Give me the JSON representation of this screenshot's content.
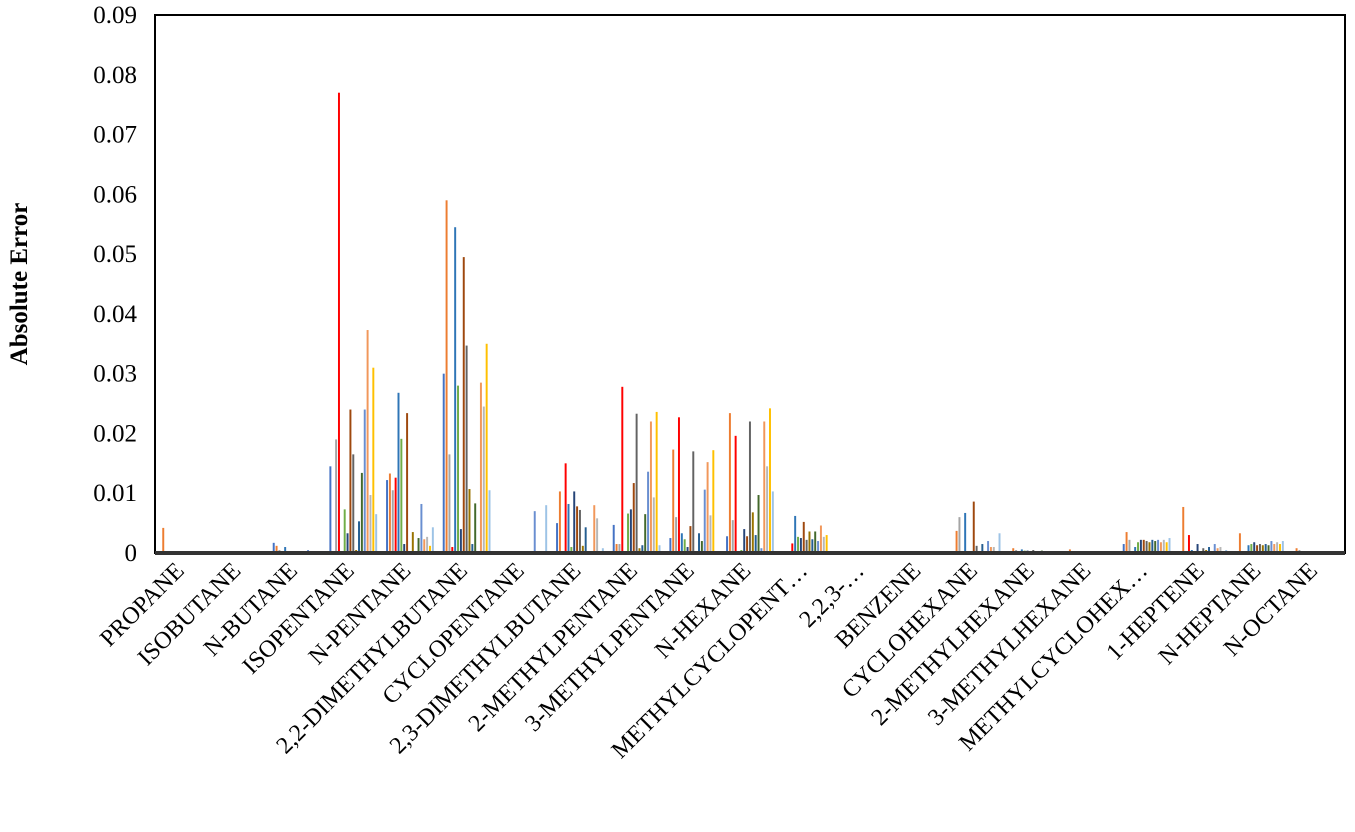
{
  "chart_data": {
    "type": "bar",
    "title": "",
    "xlabel": "",
    "ylabel": "Absolute Error",
    "ylim": [
      0,
      0.09
    ],
    "yticks": [
      "0",
      "0.01",
      "0.02",
      "0.03",
      "0.04",
      "0.05",
      "0.06",
      "0.07",
      "0.08",
      "0.09"
    ],
    "ytick_values": [
      0,
      0.01,
      0.02,
      0.03,
      0.04,
      0.05,
      0.06,
      0.07,
      0.08,
      0.09
    ],
    "grid": false,
    "legend": "none",
    "categories": [
      "PROPANE",
      "ISOBUTANE",
      "N-BUTANE",
      "ISOPENTANE",
      "N-PENTANE",
      "2,2-DIMETHYLBUTANE",
      "CYCLOPENTANE",
      "2,3-DIMETHYLBUTANE",
      "2-METHYLPENTANE",
      "3-METHYLPENTANE",
      "N-HEXANE",
      "METHYLCYCLOPENT…",
      "2,2,3-…",
      "BENZENE",
      "CYCLOHEXANE",
      "2-METHYLHEXANE",
      "3-METHYLHEXANE",
      "METHYLCYCLOHEX…",
      "1-HEPTENE",
      "N-HEPTANE",
      "N-OCTANE"
    ],
    "series_colors": [
      "#4472C4",
      "#ED7D31",
      "#A5A5A5",
      "#FF0000",
      "#2E75B6",
      "#70AD47",
      "#264478",
      "#9E480E",
      "#636363",
      "#997300",
      "#255E91",
      "#43682B",
      "#698ED0",
      "#F1975A",
      "#B7B7B7",
      "#FFC000",
      "#9DC3E6"
    ],
    "values_by_category": [
      [
        0.0003,
        0.0042,
        0,
        0,
        0.0003,
        0,
        0,
        0,
        0,
        0,
        0.0002,
        0,
        0.0002,
        0,
        0,
        0.0002,
        0.0003
      ],
      [
        0,
        0,
        0,
        0,
        0,
        0,
        0,
        0,
        0,
        0,
        0,
        0,
        0,
        0,
        0,
        0,
        0
      ],
      [
        0.0017,
        0.0012,
        0.0005,
        0,
        0.001,
        0.0003,
        0.0003,
        0.0002,
        0.0003,
        0.0003,
        0.0002,
        0.0003,
        0.0005,
        0.0003,
        0.0003,
        0.0002,
        0.0003
      ],
      [
        0.0145,
        0.0003,
        0.019,
        0.077,
        0,
        0.0073,
        0.0033,
        0.024,
        0.0165,
        0.0005,
        0.0053,
        0.0134,
        0.024,
        0.0373,
        0.0097,
        0.031,
        0.0065
      ],
      [
        0.0122,
        0.0133,
        0.0105,
        0.0126,
        0.0268,
        0.0191,
        0.0015,
        0.0234,
        0.0003,
        0.0035,
        0.0003,
        0.0025,
        0.0082,
        0.0023,
        0.0027,
        0.0012,
        0.0043
      ],
      [
        0.03,
        0.059,
        0.0165,
        0.001,
        0.0545,
        0.028,
        0.004,
        0.0495,
        0.0347,
        0.0107,
        0.0015,
        0.0083,
        0.0003,
        0.0285,
        0.0245,
        0.035,
        0.0105
      ],
      [
        0,
        0,
        0,
        0,
        0,
        0,
        0,
        0,
        0,
        0,
        0,
        0,
        0.007,
        0,
        0,
        0,
        0.008
      ],
      [
        0.005,
        0.0103,
        0.0003,
        0.015,
        0.0082,
        0.001,
        0.0103,
        0.0078,
        0.0072,
        0.0012,
        0.0043,
        0.0003,
        0.0003,
        0.008,
        0.0058,
        0.0003,
        0.0008
      ],
      [
        0.0047,
        0.0015,
        0.0015,
        0.0278,
        0.0003,
        0.0066,
        0.0073,
        0.0117,
        0.0233,
        0.0008,
        0.0013,
        0.0065,
        0.0136,
        0.022,
        0.0093,
        0.0236,
        0.0013
      ],
      [
        0.0025,
        0.0173,
        0.006,
        0.0227,
        0.0033,
        0.0023,
        0.001,
        0.0045,
        0.017,
        0,
        0.0033,
        0.002,
        0.0106,
        0.0152,
        0.0063,
        0.0172,
        0
      ],
      [
        0.0028,
        0.0234,
        0.0055,
        0.0196,
        0,
        0.0005,
        0.004,
        0.0028,
        0.022,
        0.0068,
        0.003,
        0.0097,
        0.0008,
        0.022,
        0.0145,
        0.0242,
        0.0103
      ],
      [
        0.0003,
        0.0003,
        0.0003,
        0.0016,
        0.0062,
        0.0027,
        0.0025,
        0.0052,
        0.0022,
        0.0036,
        0.0023,
        0.0036,
        0.002,
        0.0046,
        0.0027,
        0.003,
        0.0003
      ],
      [
        0,
        0,
        0,
        0,
        0,
        0,
        0,
        0,
        0,
        0,
        0,
        0,
        0,
        0,
        0,
        0,
        0
      ],
      [
        0,
        0,
        0,
        0,
        0,
        0,
        0,
        0,
        0,
        0,
        0,
        0,
        0,
        0,
        0,
        0,
        0
      ],
      [
        0.0003,
        0.0037,
        0.006,
        0,
        0.0067,
        0,
        0,
        0.0086,
        0.0012,
        0,
        0.0015,
        0,
        0.002,
        0.001,
        0.001,
        0,
        0.0033
      ],
      [
        0.0003,
        0.0008,
        0.0005,
        0,
        0.0006,
        0.0004,
        0.0004,
        0.0003,
        0.0005,
        0.0003,
        0.0003,
        0.0004,
        0.0003,
        0.0003,
        0.0003,
        0.0002,
        0.0003
      ],
      [
        0.0002,
        0.0006,
        0.0002,
        0,
        0.0003,
        0.0002,
        0.0002,
        0.0002,
        0.0002,
        0.0002,
        0.0002,
        0.0002,
        0.0002,
        0.0003,
        0.0002,
        0.0002,
        0.0002
      ],
      [
        0.0015,
        0.0035,
        0.0022,
        0,
        0.001,
        0.0018,
        0.0022,
        0.0022,
        0.002,
        0.0018,
        0.0022,
        0.002,
        0.0022,
        0.0018,
        0.0022,
        0.0018,
        0.0025
      ],
      [
        0.0003,
        0.0077,
        0.0003,
        0.003,
        0.0005,
        0.0003,
        0.0015,
        0.0003,
        0.0008,
        0.0005,
        0.001,
        0.0003,
        0.0015,
        0.0008,
        0.001,
        0.0003,
        0.0005
      ],
      [
        0.0003,
        0.0033,
        0.0003,
        0,
        0.0013,
        0.0015,
        0.0018,
        0.0013,
        0.0015,
        0.0013,
        0.0015,
        0.0013,
        0.002,
        0.0015,
        0.0018,
        0.0015,
        0.002
      ],
      [
        0.0003,
        0.0008,
        0.0005,
        0,
        0.0003,
        0.0003,
        0.0003,
        0.0003,
        0.0003,
        0.0003,
        0.0003,
        0.0003,
        0.0003,
        0.0003,
        0.0003,
        0.0003,
        0.0003
      ]
    ]
  }
}
